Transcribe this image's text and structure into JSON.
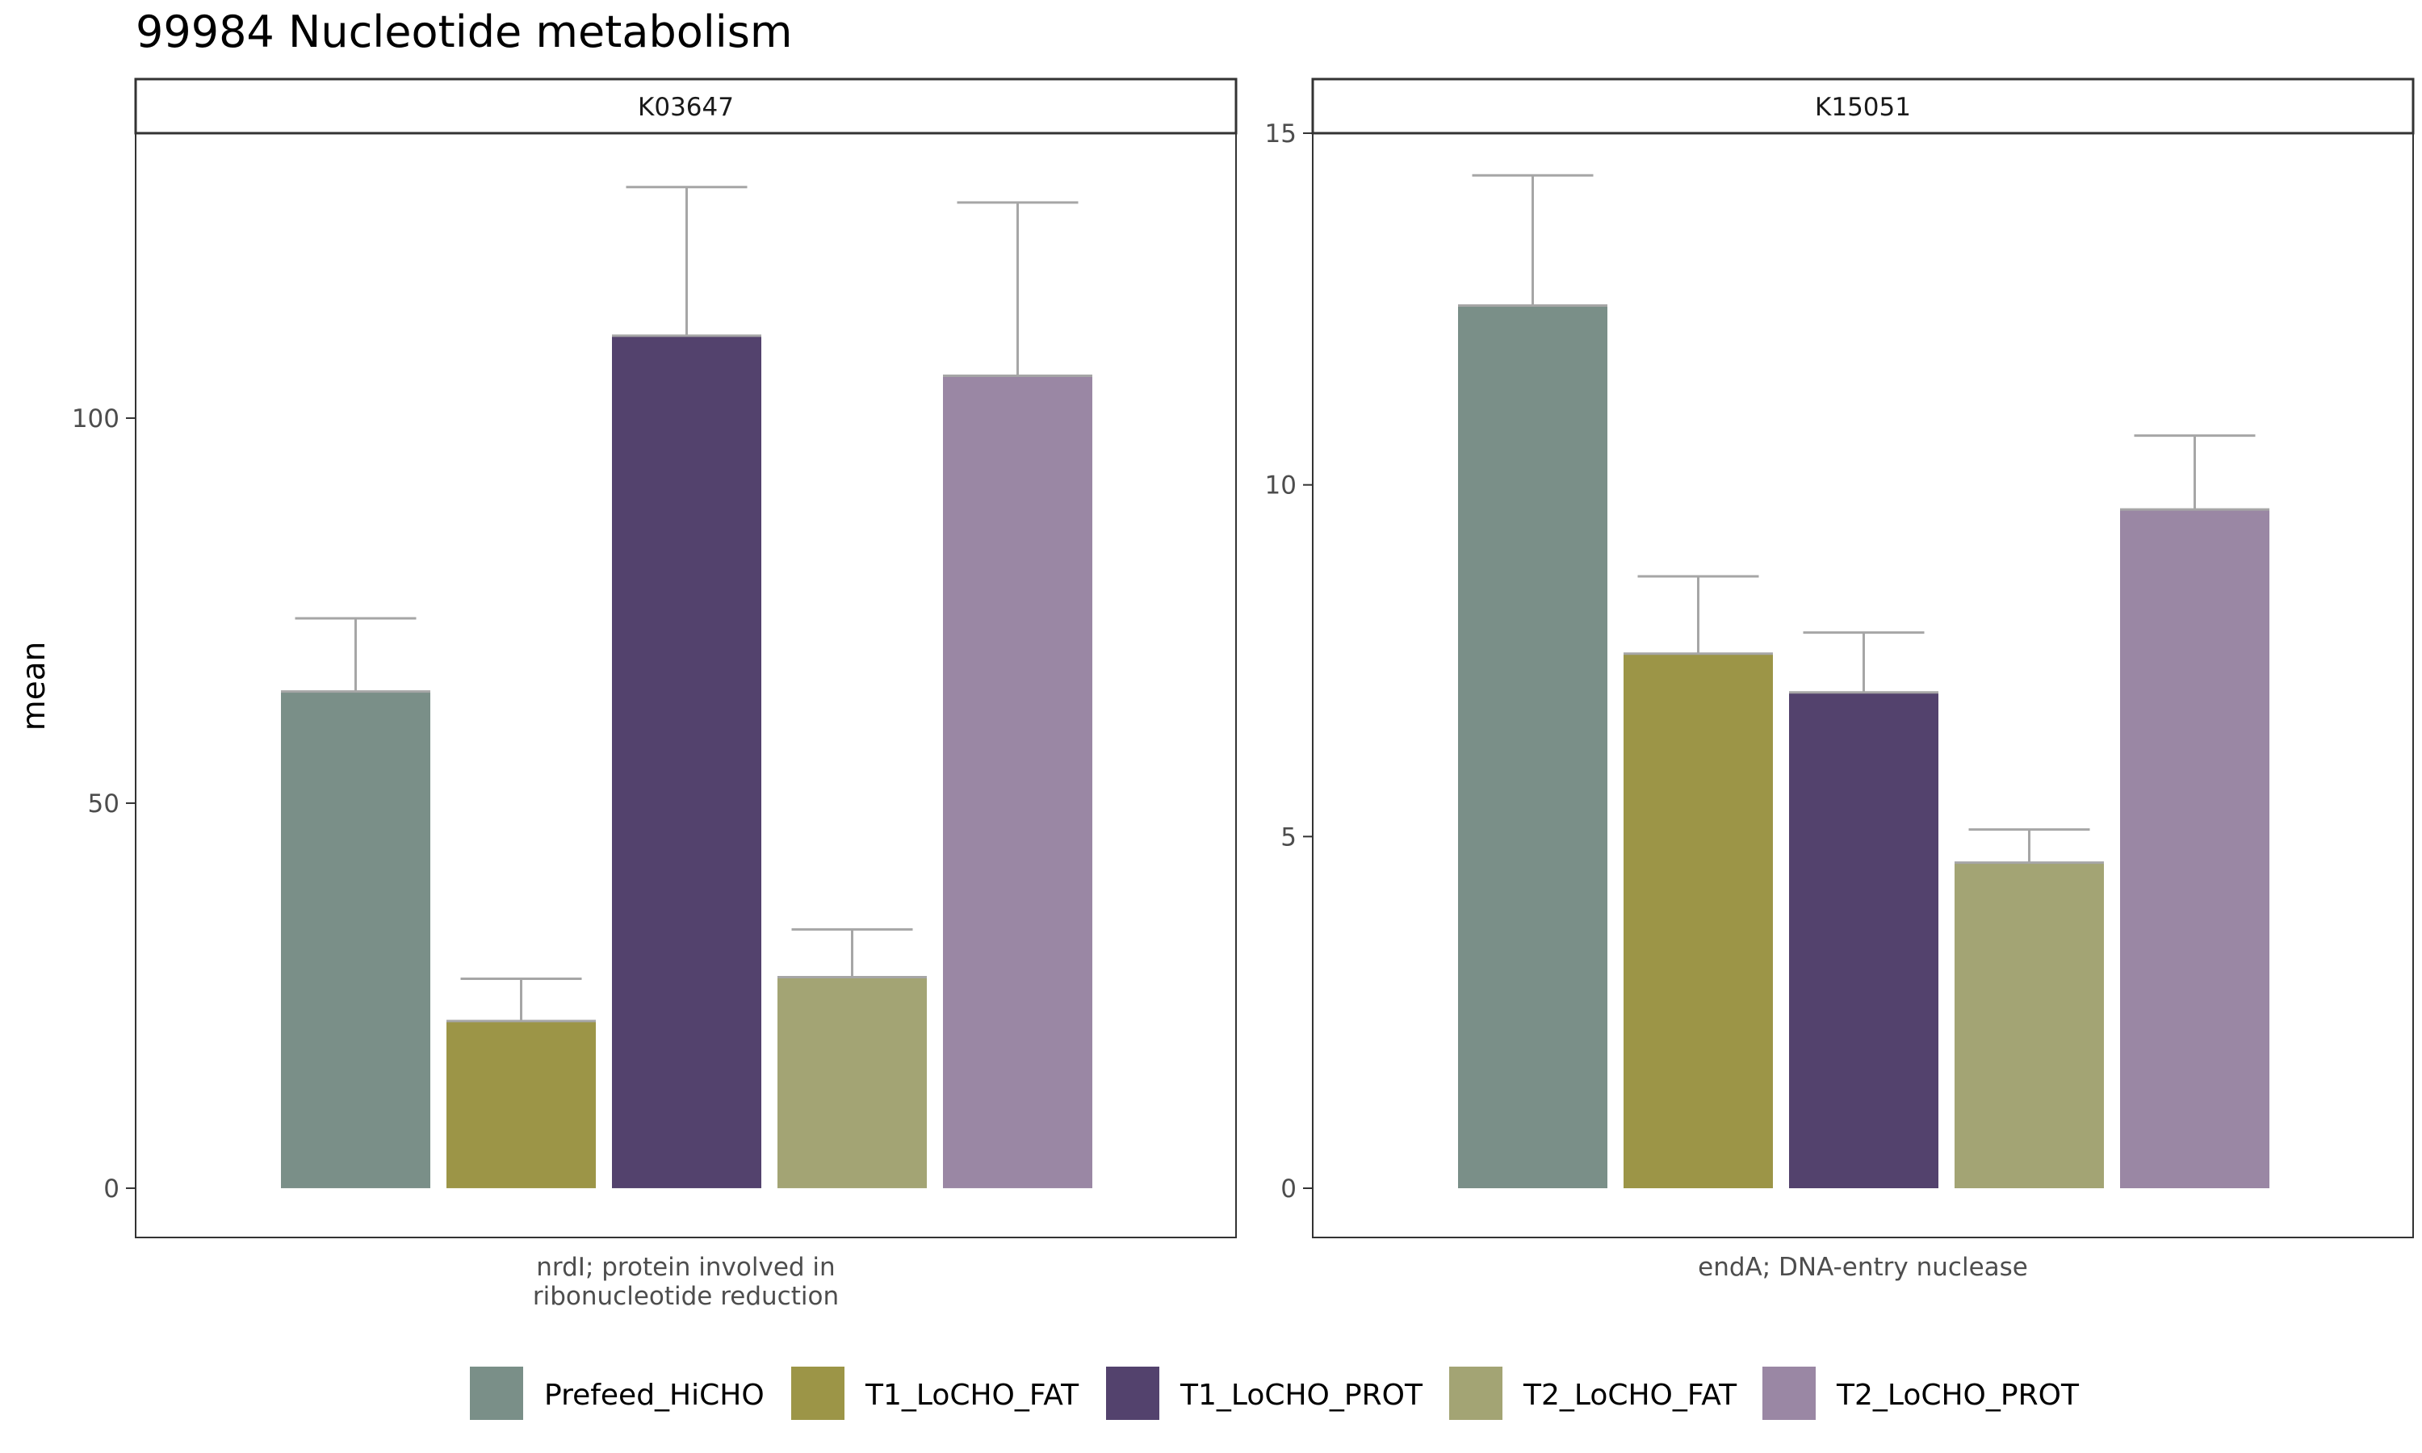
{
  "chart_data": {
    "type": "bar",
    "title": "99984 Nucleotide metabolism",
    "ylabel": "mean",
    "legend_position": "bottom",
    "grid": false,
    "error_bar_color": "#a6a6a6",
    "series": [
      {
        "name": "Prefeed_HiCHO",
        "color": "#7a8f88"
      },
      {
        "name": "T1_LoCHO_FAT",
        "color": "#9c9547"
      },
      {
        "name": "T1_LoCHO_PROT",
        "color": "#53426d"
      },
      {
        "name": "T2_LoCHO_FAT",
        "color": "#a3a474"
      },
      {
        "name": "T2_LoCHO_PROT",
        "color": "#9a87a4"
      }
    ],
    "panels": [
      {
        "strip": "K03647",
        "xlabel_lines": [
          "nrdI; protein involved in",
          "ribonucleotide reduction"
        ],
        "ylim": [
          -6.4,
          137
        ],
        "yticks": [
          0,
          50,
          100
        ],
        "values": [
          64.5,
          21.7,
          110.7,
          27.4,
          105.5
        ],
        "error_upper": [
          74.0,
          27.2,
          130.0,
          33.6,
          128.0
        ]
      },
      {
        "strip": "K15051",
        "xlabel_lines": [
          "endA; DNA-entry nuclease"
        ],
        "ylim": [
          -0.7,
          15.0
        ],
        "yticks": [
          0,
          5,
          10,
          15
        ],
        "values": [
          12.55,
          7.6,
          7.05,
          4.63,
          9.65
        ],
        "error_upper": [
          14.4,
          8.7,
          7.9,
          5.1,
          10.7
        ]
      }
    ]
  }
}
